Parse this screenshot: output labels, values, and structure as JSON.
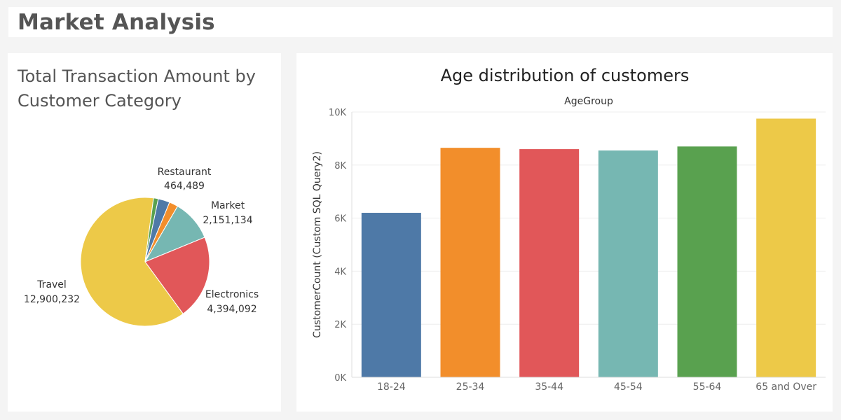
{
  "dashboard": {
    "title": "Market Analysis"
  },
  "pie_panel": {
    "title": "Total Transaction Amount by Customer Category"
  },
  "bar_panel": {
    "title": "Age distribution of customers"
  },
  "colors": {
    "blue": "#4e79a7",
    "orange": "#f28e2b",
    "red": "#e15759",
    "teal": "#76b7b2",
    "green": "#59a14f",
    "yellow": "#edc948"
  },
  "chart_data": [
    {
      "type": "pie",
      "title": "Total Transaction Amount by Customer Category",
      "slices": [
        {
          "label": "Restaurant",
          "value": 464489,
          "value_text": "464,489",
          "color": "#f28e2b",
          "show_label": true
        },
        {
          "label": "Market",
          "value": 2151134,
          "value_text": "2,151,134",
          "color": "#76b7b2",
          "show_label": true
        },
        {
          "label": "Electronics",
          "value": 4394092,
          "value_text": "4,394,092",
          "color": "#e15759",
          "show_label": true
        },
        {
          "label": "Travel",
          "value": 12900232,
          "value_text": "12,900,232",
          "color": "#edc948",
          "show_label": true
        },
        {
          "label": "",
          "value": 250000,
          "value_text": "",
          "color": "#59a14f",
          "show_label": false
        },
        {
          "label": "",
          "value": 600000,
          "value_text": "",
          "color": "#4e79a7",
          "show_label": false
        }
      ]
    },
    {
      "type": "bar",
      "title": "Age distribution of customers",
      "header": "AgeGroup",
      "ylabel": "CustomerCount (Custom SQL Query2)",
      "categories": [
        "18-24",
        "25-34",
        "35-44",
        "45-54",
        "55-64",
        "65 and Over"
      ],
      "values": [
        6200,
        8650,
        8600,
        8550,
        8700,
        9750
      ],
      "colors": [
        "#4e79a7",
        "#f28e2b",
        "#e15759",
        "#76b7b2",
        "#59a14f",
        "#edc948"
      ],
      "yticks": [
        0,
        2000,
        4000,
        6000,
        8000,
        10000
      ],
      "ytick_labels": [
        "0K",
        "2K",
        "4K",
        "6K",
        "8K",
        "10K"
      ],
      "ylim": [
        0,
        10000
      ],
      "grid": true
    }
  ]
}
